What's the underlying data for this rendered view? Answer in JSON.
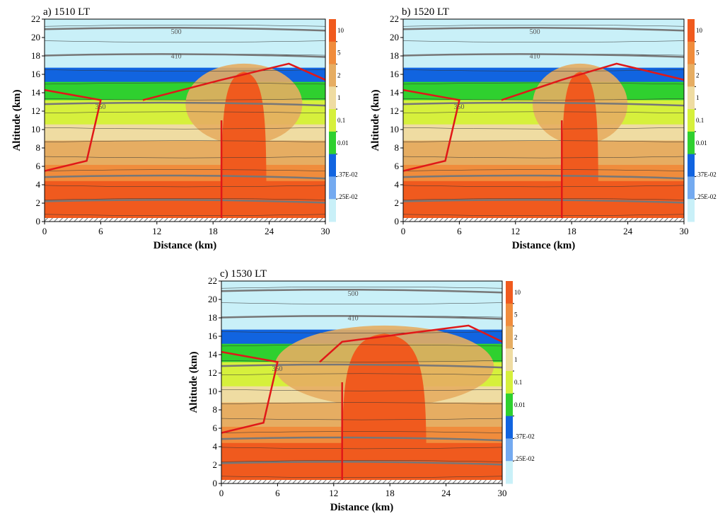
{
  "chart_data": [
    {
      "type": "contour",
      "title": "a) 1510 LT",
      "xlabel": "Distance (km)",
      "ylabel": "Altitude (km)",
      "xlim": [
        0,
        30
      ],
      "xticks": [
        0,
        6,
        12,
        18,
        24,
        30
      ],
      "ylim": [
        0,
        22
      ],
      "yticks": [
        0,
        2,
        4,
        6,
        8,
        10,
        12,
        14,
        16,
        18,
        20,
        22
      ],
      "annotations": [
        "500",
        "410",
        "350"
      ],
      "colorbar": {
        "levels": [
          10,
          5,
          2,
          1,
          0.1,
          0.01,
          {
            "value": 0.0037,
            "label": ".37E-02"
          },
          {
            "value": 0.0025,
            "label": ".25E-02"
          }
        ],
        "colors": [
          "#f05a1e",
          "#f08c3c",
          "#e6ad62",
          "#efdca2",
          "#d6f03c",
          "#2fd02f",
          "#1164e0",
          "#74aaf0",
          "#c9f0f8"
        ]
      }
    },
    {
      "type": "contour",
      "title": "b) 1520 LT",
      "xlabel": "Distance (km)",
      "ylabel": "Altitude (km)",
      "xlim": [
        0,
        30
      ],
      "xticks": [
        0,
        6,
        12,
        18,
        24,
        30
      ],
      "ylim": [
        0,
        22
      ],
      "yticks": [
        0,
        2,
        4,
        6,
        8,
        10,
        12,
        14,
        16,
        18,
        20,
        22
      ],
      "annotations": [
        "500",
        "410",
        "350"
      ],
      "colorbar": {
        "levels": [
          10,
          5,
          2,
          1,
          0.1,
          0.01,
          {
            "value": 0.0037,
            "label": ".37E-02"
          },
          {
            "value": 0.0025,
            "label": ".25E-02"
          }
        ],
        "colors": [
          "#f05a1e",
          "#f08c3c",
          "#e6ad62",
          "#efdca2",
          "#d6f03c",
          "#2fd02f",
          "#1164e0",
          "#74aaf0",
          "#c9f0f8"
        ]
      }
    },
    {
      "type": "contour",
      "title": "c) 1530 LT",
      "xlabel": "Distance (km)",
      "ylabel": "Altitude (km)",
      "xlim": [
        0,
        30
      ],
      "xticks": [
        0,
        6,
        12,
        18,
        24,
        30
      ],
      "ylim": [
        0,
        22
      ],
      "yticks": [
        0,
        2,
        4,
        6,
        8,
        10,
        12,
        14,
        16,
        18,
        20,
        22
      ],
      "annotations": [
        "500",
        "410",
        "350"
      ],
      "colorbar": {
        "levels": [
          10,
          5,
          2,
          1,
          0.1,
          0.01,
          {
            "value": 0.0037,
            "label": ".37E-02"
          },
          {
            "value": 0.0025,
            "label": ".25E-02"
          }
        ],
        "colors": [
          "#f05a1e",
          "#f08c3c",
          "#e6ad62",
          "#efdca2",
          "#d6f03c",
          "#2fd02f",
          "#1164e0",
          "#74aaf0",
          "#c9f0f8"
        ]
      }
    }
  ]
}
